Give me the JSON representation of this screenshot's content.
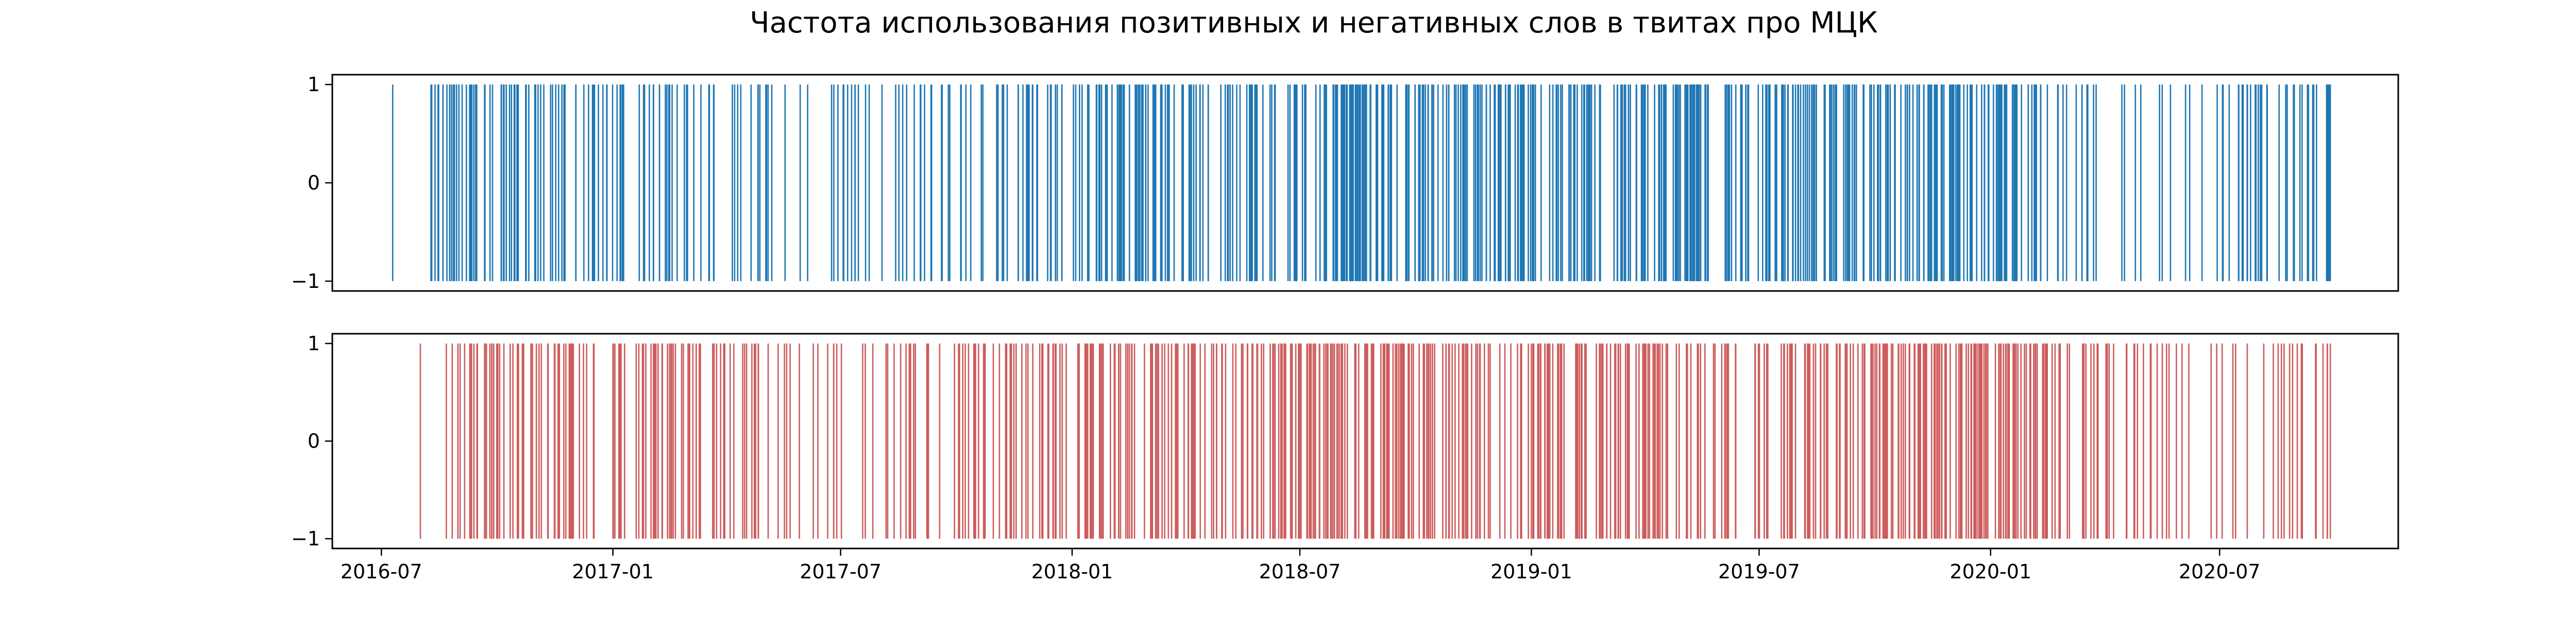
{
  "chart_data": {
    "type": "event-plot",
    "title": "Частота использования позитивных и негативных слов в твитах про МЦК",
    "x_axis": {
      "type": "date",
      "range": [
        "2016-05-23",
        "2020-11-20"
      ],
      "ticks": [
        {
          "date": "2016-07-01",
          "label": "2016-07"
        },
        {
          "date": "2017-01-01",
          "label": "2017-01"
        },
        {
          "date": "2017-07-01",
          "label": "2017-07"
        },
        {
          "date": "2018-01-01",
          "label": "2018-01"
        },
        {
          "date": "2018-07-01",
          "label": "2018-07"
        },
        {
          "date": "2019-01-01",
          "label": "2019-01"
        },
        {
          "date": "2019-07-01",
          "label": "2019-07"
        },
        {
          "date": "2020-01-01",
          "label": "2020-01"
        },
        {
          "date": "2020-07-01",
          "label": "2020-07"
        }
      ]
    },
    "y_axis": {
      "range": [
        -1.1,
        1.1
      ],
      "ticks": [
        1,
        0,
        -1
      ],
      "tick_labels": [
        "1",
        "0",
        "−1"
      ]
    },
    "panels": [
      {
        "name": "positive",
        "color": "#1f77b4",
        "line_offset": 0,
        "line_length": 2,
        "events_range": [
          "2016-07-10",
          "2020-09-27"
        ],
        "n_events": 700,
        "seed": 11,
        "density_profile": [
          [
            "2016-07-10",
            0.05
          ],
          [
            "2016-08-10",
            0.25
          ],
          [
            "2016-08-25",
            1.0
          ],
          [
            "2016-11-20",
            0.9
          ],
          [
            "2017-01-01",
            0.8
          ],
          [
            "2017-04-01",
            0.8
          ],
          [
            "2017-06-01",
            0.25
          ],
          [
            "2017-07-10",
            0.45
          ],
          [
            "2017-10-01",
            0.55
          ],
          [
            "2017-12-01",
            0.6
          ],
          [
            "2018-02-01",
            0.9
          ],
          [
            "2018-06-01",
            0.8
          ],
          [
            "2018-08-15",
            1.4
          ],
          [
            "2018-11-01",
            1.2
          ],
          [
            "2019-03-01",
            1.3
          ],
          [
            "2019-06-01",
            1.1
          ],
          [
            "2019-09-01",
            1.2
          ],
          [
            "2019-12-15",
            1.3
          ],
          [
            "2020-03-01",
            0.6
          ],
          [
            "2020-04-01",
            0.25
          ],
          [
            "2020-06-01",
            0.5
          ],
          [
            "2020-09-27",
            0.8
          ]
        ]
      },
      {
        "name": "negative",
        "color": "#cd5c5c",
        "line_offset": 0,
        "line_length": 2,
        "events_range": [
          "2016-08-01",
          "2020-09-27"
        ],
        "n_events": 680,
        "seed": 23,
        "density_profile": [
          [
            "2016-08-01",
            0.1
          ],
          [
            "2016-09-01",
            0.8
          ],
          [
            "2016-11-01",
            0.9
          ],
          [
            "2017-03-01",
            0.9
          ],
          [
            "2017-05-01",
            0.4
          ],
          [
            "2017-07-01",
            0.3
          ],
          [
            "2017-09-01",
            0.5
          ],
          [
            "2017-11-15",
            0.8
          ],
          [
            "2018-02-01",
            1.3
          ],
          [
            "2018-05-01",
            0.8
          ],
          [
            "2018-08-15",
            1.2
          ],
          [
            "2019-01-01",
            1.0
          ],
          [
            "2019-04-01",
            1.1
          ],
          [
            "2019-07-01",
            0.7
          ],
          [
            "2019-10-01",
            1.2
          ],
          [
            "2020-01-15",
            1.2
          ],
          [
            "2020-03-15",
            0.8
          ],
          [
            "2020-04-20",
            0.15
          ],
          [
            "2020-06-01",
            0.5
          ],
          [
            "2020-09-27",
            0.6
          ]
        ]
      }
    ]
  }
}
